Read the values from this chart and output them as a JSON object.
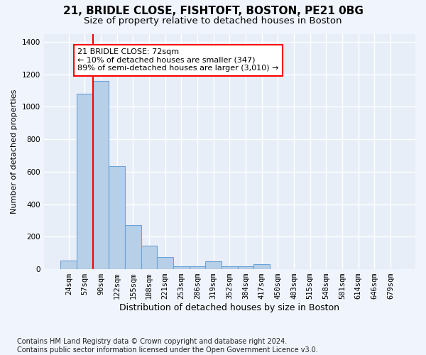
{
  "title1": "21, BRIDLE CLOSE, FISHTOFT, BOSTON, PE21 0BG",
  "title2": "Size of property relative to detached houses in Boston",
  "xlabel": "Distribution of detached houses by size in Boston",
  "ylabel": "Number of detached properties",
  "footnote": "Contains HM Land Registry data © Crown copyright and database right 2024.\nContains public sector information licensed under the Open Government Licence v3.0.",
  "categories": [
    "24sqm",
    "57sqm",
    "90sqm",
    "122sqm",
    "155sqm",
    "188sqm",
    "221sqm",
    "253sqm",
    "286sqm",
    "319sqm",
    "352sqm",
    "384sqm",
    "417sqm",
    "450sqm",
    "483sqm",
    "515sqm",
    "548sqm",
    "581sqm",
    "614sqm",
    "646sqm",
    "679sqm"
  ],
  "values": [
    55,
    1080,
    1160,
    635,
    270,
    145,
    75,
    20,
    20,
    50,
    20,
    20,
    30,
    0,
    0,
    0,
    0,
    0,
    0,
    0,
    0
  ],
  "bar_color": "#b8cfe8",
  "bar_edge_color": "#6ba3d6",
  "red_line_x": 1.5,
  "annotation_text": "21 BRIDLE CLOSE: 72sqm\n← 10% of detached houses are smaller (347)\n89% of semi-detached houses are larger (3,010) →",
  "ylim": [
    0,
    1450
  ],
  "yticks": [
    0,
    200,
    400,
    600,
    800,
    1000,
    1200,
    1400
  ],
  "fig_bg_color": "#f0f4fc",
  "plot_bg_color": "#e8eef8",
  "grid_color": "#ffffff",
  "title1_fontsize": 11,
  "title2_fontsize": 9.5,
  "xlabel_fontsize": 9,
  "ylabel_fontsize": 8,
  "footnote_fontsize": 7,
  "tick_fontsize": 7.5,
  "annotation_fontsize": 8
}
